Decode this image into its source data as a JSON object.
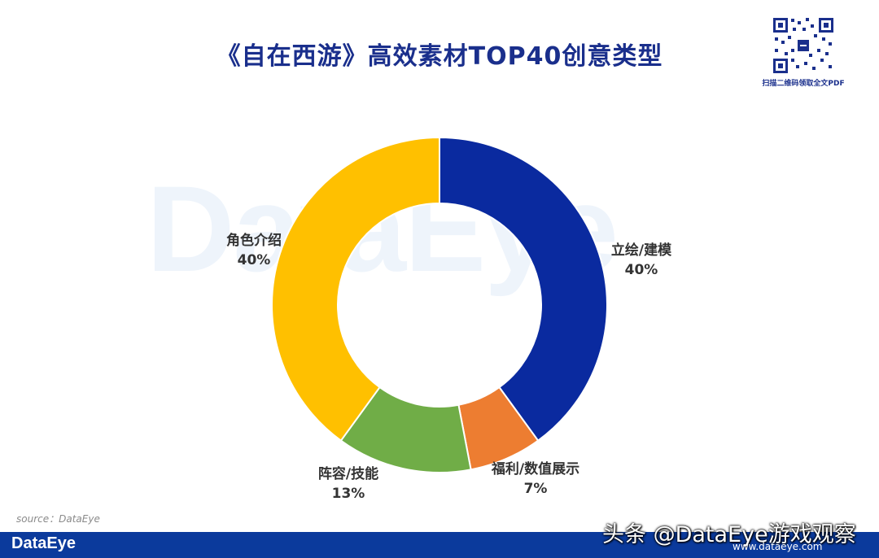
{
  "header": {
    "title": "《自在西游》高效素材TOP40创意类型"
  },
  "qr": {
    "caption": "扫描二维码领取全文PDF"
  },
  "watermark": {
    "text": "DataEye"
  },
  "source": {
    "text": "source：DataEye"
  },
  "footer": {
    "logo": "DataEye"
  },
  "credit": {
    "text": "头条 @DataEye游戏观察",
    "url": "www.dataeye.com"
  },
  "colors": {
    "title": "#1a2f8c",
    "footer": "#0b3a9c"
  },
  "chart_data": {
    "type": "pie",
    "style": "donut",
    "title": "《自在西游》高效素材TOP40创意类型",
    "slices": [
      {
        "label": "立绘/建模",
        "value": 40,
        "display": "40%",
        "color": "#0a2a9f"
      },
      {
        "label": "福利/数值展示",
        "value": 7,
        "display": "7%",
        "color": "#ed7d31"
      },
      {
        "label": "阵容/技能",
        "value": 13,
        "display": "13%",
        "color": "#70ad47"
      },
      {
        "label": "角色介绍",
        "value": 40,
        "display": "40%",
        "color": "#ffc000"
      }
    ],
    "legend": "none"
  }
}
